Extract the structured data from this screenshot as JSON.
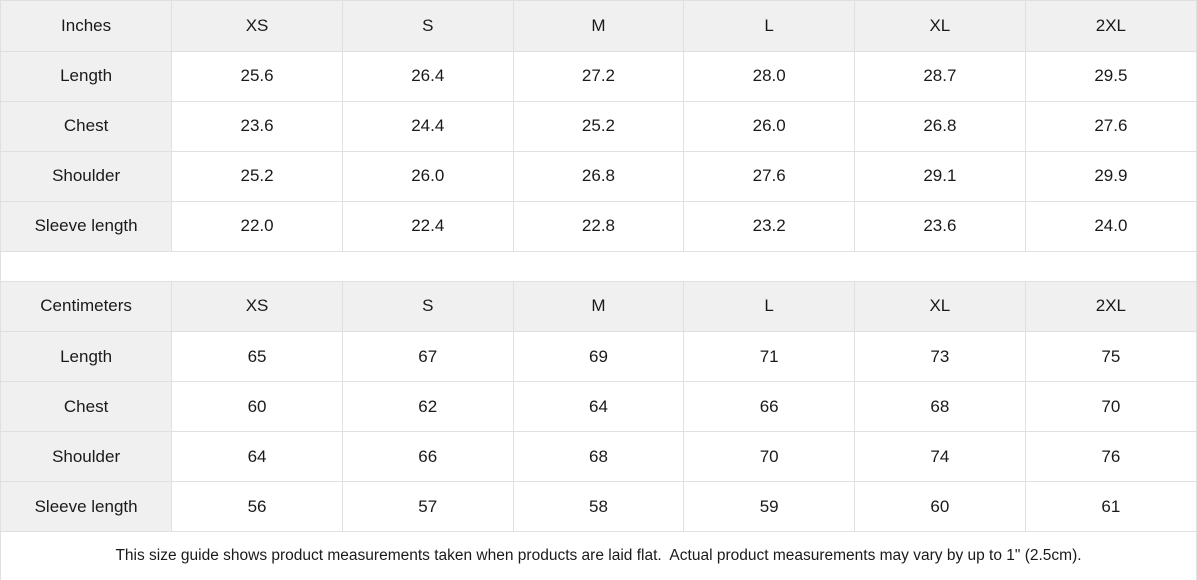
{
  "colors": {
    "header_bg": "#f0f0f0",
    "border": "#e0e0e0",
    "text": "#1a1a1a"
  },
  "tables": [
    {
      "unit_label": "Inches",
      "sizes": [
        "XS",
        "S",
        "M",
        "L",
        "XL",
        "2XL"
      ],
      "rows": [
        {
          "label": "Length",
          "values": [
            "25.6",
            "26.4",
            "27.2",
            "28.0",
            "28.7",
            "29.5"
          ]
        },
        {
          "label": "Chest",
          "values": [
            "23.6",
            "24.4",
            "25.2",
            "26.0",
            "26.8",
            "27.6"
          ]
        },
        {
          "label": "Shoulder",
          "values": [
            "25.2",
            "26.0",
            "26.8",
            "27.6",
            "29.1",
            "29.9"
          ]
        },
        {
          "label": "Sleeve length",
          "values": [
            "22.0",
            "22.4",
            "22.8",
            "23.2",
            "23.6",
            "24.0"
          ]
        }
      ]
    },
    {
      "unit_label": "Centimeters",
      "sizes": [
        "XS",
        "S",
        "M",
        "L",
        "XL",
        "2XL"
      ],
      "rows": [
        {
          "label": "Length",
          "values": [
            "65",
            "67",
            "69",
            "71",
            "73",
            "75"
          ]
        },
        {
          "label": "Chest",
          "values": [
            "60",
            "62",
            "64",
            "66",
            "68",
            "70"
          ]
        },
        {
          "label": "Shoulder",
          "values": [
            "64",
            "66",
            "68",
            "70",
            "74",
            "76"
          ]
        },
        {
          "label": "Sleeve length",
          "values": [
            "56",
            "57",
            "58",
            "59",
            "60",
            "61"
          ]
        }
      ]
    }
  ],
  "footer": {
    "note": "This size guide shows product measurements taken when products are laid flat.  Actual product measurements may vary by up to 1\" (2.5cm)."
  }
}
